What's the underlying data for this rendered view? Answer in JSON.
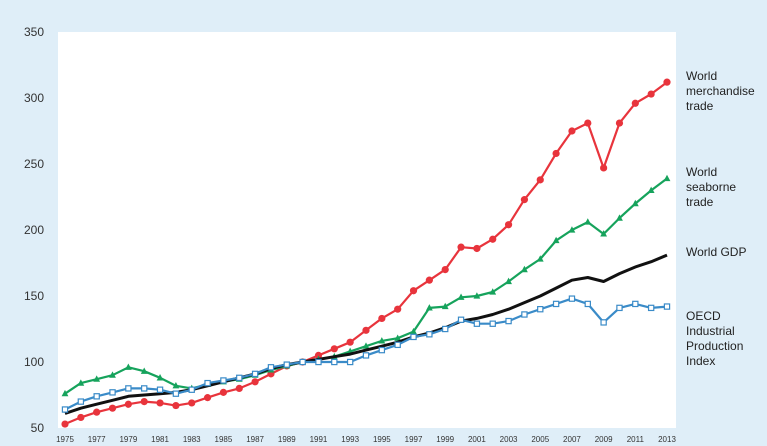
{
  "chart_data": {
    "type": "line",
    "title": "",
    "xlabel": "",
    "ylabel": "",
    "ylim": [
      50,
      350
    ],
    "yticks": [
      50,
      100,
      150,
      200,
      250,
      300,
      350
    ],
    "x": [
      1975,
      1976,
      1977,
      1978,
      1979,
      1980,
      1981,
      1982,
      1983,
      1984,
      1985,
      1986,
      1987,
      1988,
      1989,
      1990,
      1991,
      1992,
      1993,
      1994,
      1995,
      1996,
      1997,
      1998,
      1999,
      2000,
      2001,
      2002,
      2003,
      2004,
      2005,
      2006,
      2007,
      2008,
      2009,
      2010,
      2011,
      2012,
      2013
    ],
    "xtick_labels": [
      "1975",
      "1977",
      "1979",
      "1981",
      "1983",
      "1985",
      "1987",
      "1989",
      "1991",
      "1993",
      "1995",
      "1997",
      "1999",
      "2001",
      "2003",
      "2005",
      "2007",
      "2009",
      "2011",
      "2013"
    ],
    "grid": false,
    "legend": "right, labels at line ends",
    "series": [
      {
        "name": "World merchandise trade",
        "label_lines": [
          "World",
          "merchandise",
          "trade"
        ],
        "color": "#e8343c",
        "marker": "filled-circle",
        "values": [
          53,
          58,
          62,
          65,
          68,
          70,
          69,
          67,
          69,
          73,
          77,
          80,
          85,
          91,
          97,
          100,
          105,
          110,
          115,
          124,
          133,
          140,
          154,
          162,
          170,
          187,
          186,
          193,
          204,
          223,
          238,
          258,
          275,
          281,
          247,
          281,
          296,
          303,
          312
        ]
      },
      {
        "name": "World seaborne trade",
        "label_lines": [
          "World",
          "seaborne",
          "trade"
        ],
        "color": "#16a35c",
        "marker": "filled-triangle",
        "values": [
          76,
          84,
          87,
          90,
          96,
          93,
          88,
          82,
          80,
          83,
          85,
          87,
          90,
          94,
          97,
          100,
          102,
          104,
          108,
          112,
          116,
          118,
          123,
          141,
          142,
          149,
          150,
          153,
          161,
          170,
          178,
          192,
          200,
          206,
          197,
          209,
          220,
          230,
          239
        ]
      },
      {
        "name": "World GDP",
        "label_lines": [
          "World GDP"
        ],
        "color": "#111111",
        "marker": "none",
        "values": [
          61,
          65,
          68,
          71,
          74,
          75,
          76,
          77,
          79,
          82,
          85,
          88,
          91,
          95,
          98,
          100,
          102,
          104,
          106,
          109,
          112,
          115,
          119,
          122,
          126,
          131,
          133,
          136,
          140,
          145,
          150,
          156,
          162,
          164,
          161,
          167,
          172,
          176,
          181
        ]
      },
      {
        "name": "OECD Industrial Production Index",
        "label_lines": [
          "OECD",
          "Industrial",
          "Production",
          "Index"
        ],
        "color": "#3a8bc8",
        "marker": "open-square",
        "values": [
          64,
          70,
          74,
          77,
          80,
          80,
          79,
          76,
          79,
          84,
          86,
          88,
          91,
          96,
          98,
          100,
          100,
          100,
          100,
          105,
          109,
          113,
          119,
          121,
          125,
          132,
          129,
          129,
          131,
          136,
          140,
          144,
          148,
          144,
          130,
          141,
          144,
          141,
          142
        ]
      }
    ]
  }
}
